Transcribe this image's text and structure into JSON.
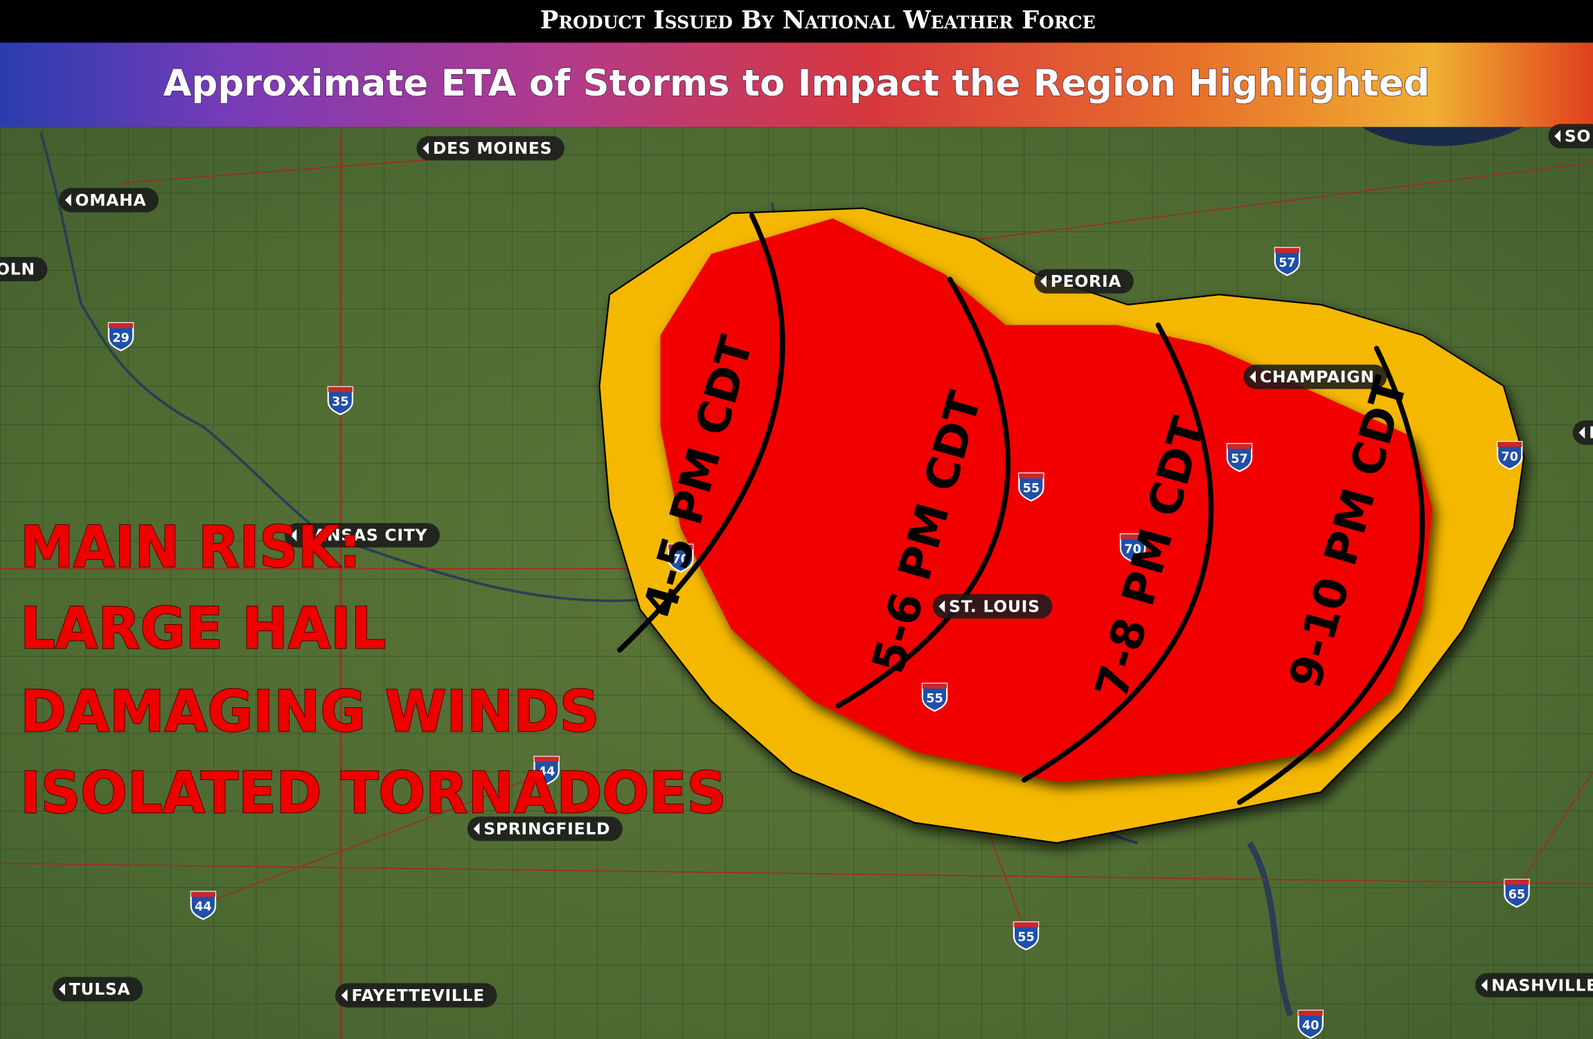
{
  "header": {
    "banner": "Product Issued By National Weather Force",
    "title": "Approximate ETA of Storms to Impact the Region Highlighted"
  },
  "map": {
    "cities": [
      "DES MOINES",
      "OMAHA",
      "OLN",
      "PEORIA",
      "CHAMPAIGN",
      "KANSAS CITY",
      "ST. LOUIS",
      "SPRINGFIELD",
      "TULSA",
      "FAYETTEVILLE",
      "NASHVILLE",
      "SO",
      "I"
    ],
    "interstates": [
      "29",
      "35",
      "57",
      "55",
      "57",
      "70",
      "70",
      "70",
      "55",
      "44",
      "44",
      "55",
      "65",
      "40"
    ],
    "eta_bands": [
      "4-5 PM CDT",
      "5-6 PM CDT",
      "7-8 PM CDT",
      "9-10 PM CDT"
    ],
    "risk": [
      "MAIN RISK:",
      "LARGE HAIL",
      "DAMAGING WINDS",
      "ISOLATED TORNADOES"
    ]
  }
}
